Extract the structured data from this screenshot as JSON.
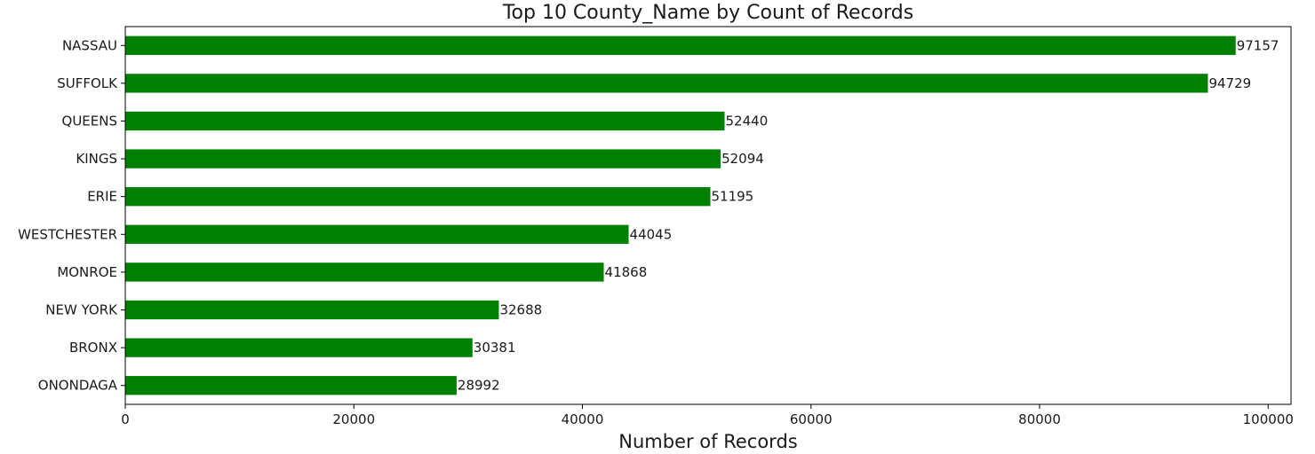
{
  "chart_data": {
    "type": "bar",
    "orientation": "horizontal",
    "title": "Top 10 County_Name by Count of Records",
    "xlabel": "Number of Records",
    "ylabel": "",
    "categories": [
      "NASSAU",
      "SUFFOLK",
      "QUEENS",
      "KINGS",
      "ERIE",
      "WESTCHESTER",
      "MONROE",
      "NEW YORK",
      "BRONX",
      "ONONDAGA"
    ],
    "values": [
      97157,
      94729,
      52440,
      52094,
      51195,
      44045,
      41868,
      32688,
      30381,
      28992
    ],
    "data_labels": [
      "97157",
      "94729",
      "52440",
      "52094",
      "51195",
      "44045",
      "41868",
      "32688",
      "30381",
      "28992"
    ],
    "xlim": [
      0,
      102000
    ],
    "xticks": [
      0,
      20000,
      40000,
      60000,
      80000,
      100000
    ],
    "xtick_labels": [
      "0",
      "20000",
      "40000",
      "60000",
      "80000",
      "100000"
    ],
    "bar_color": "#008000",
    "grid": false,
    "legend": "none"
  }
}
